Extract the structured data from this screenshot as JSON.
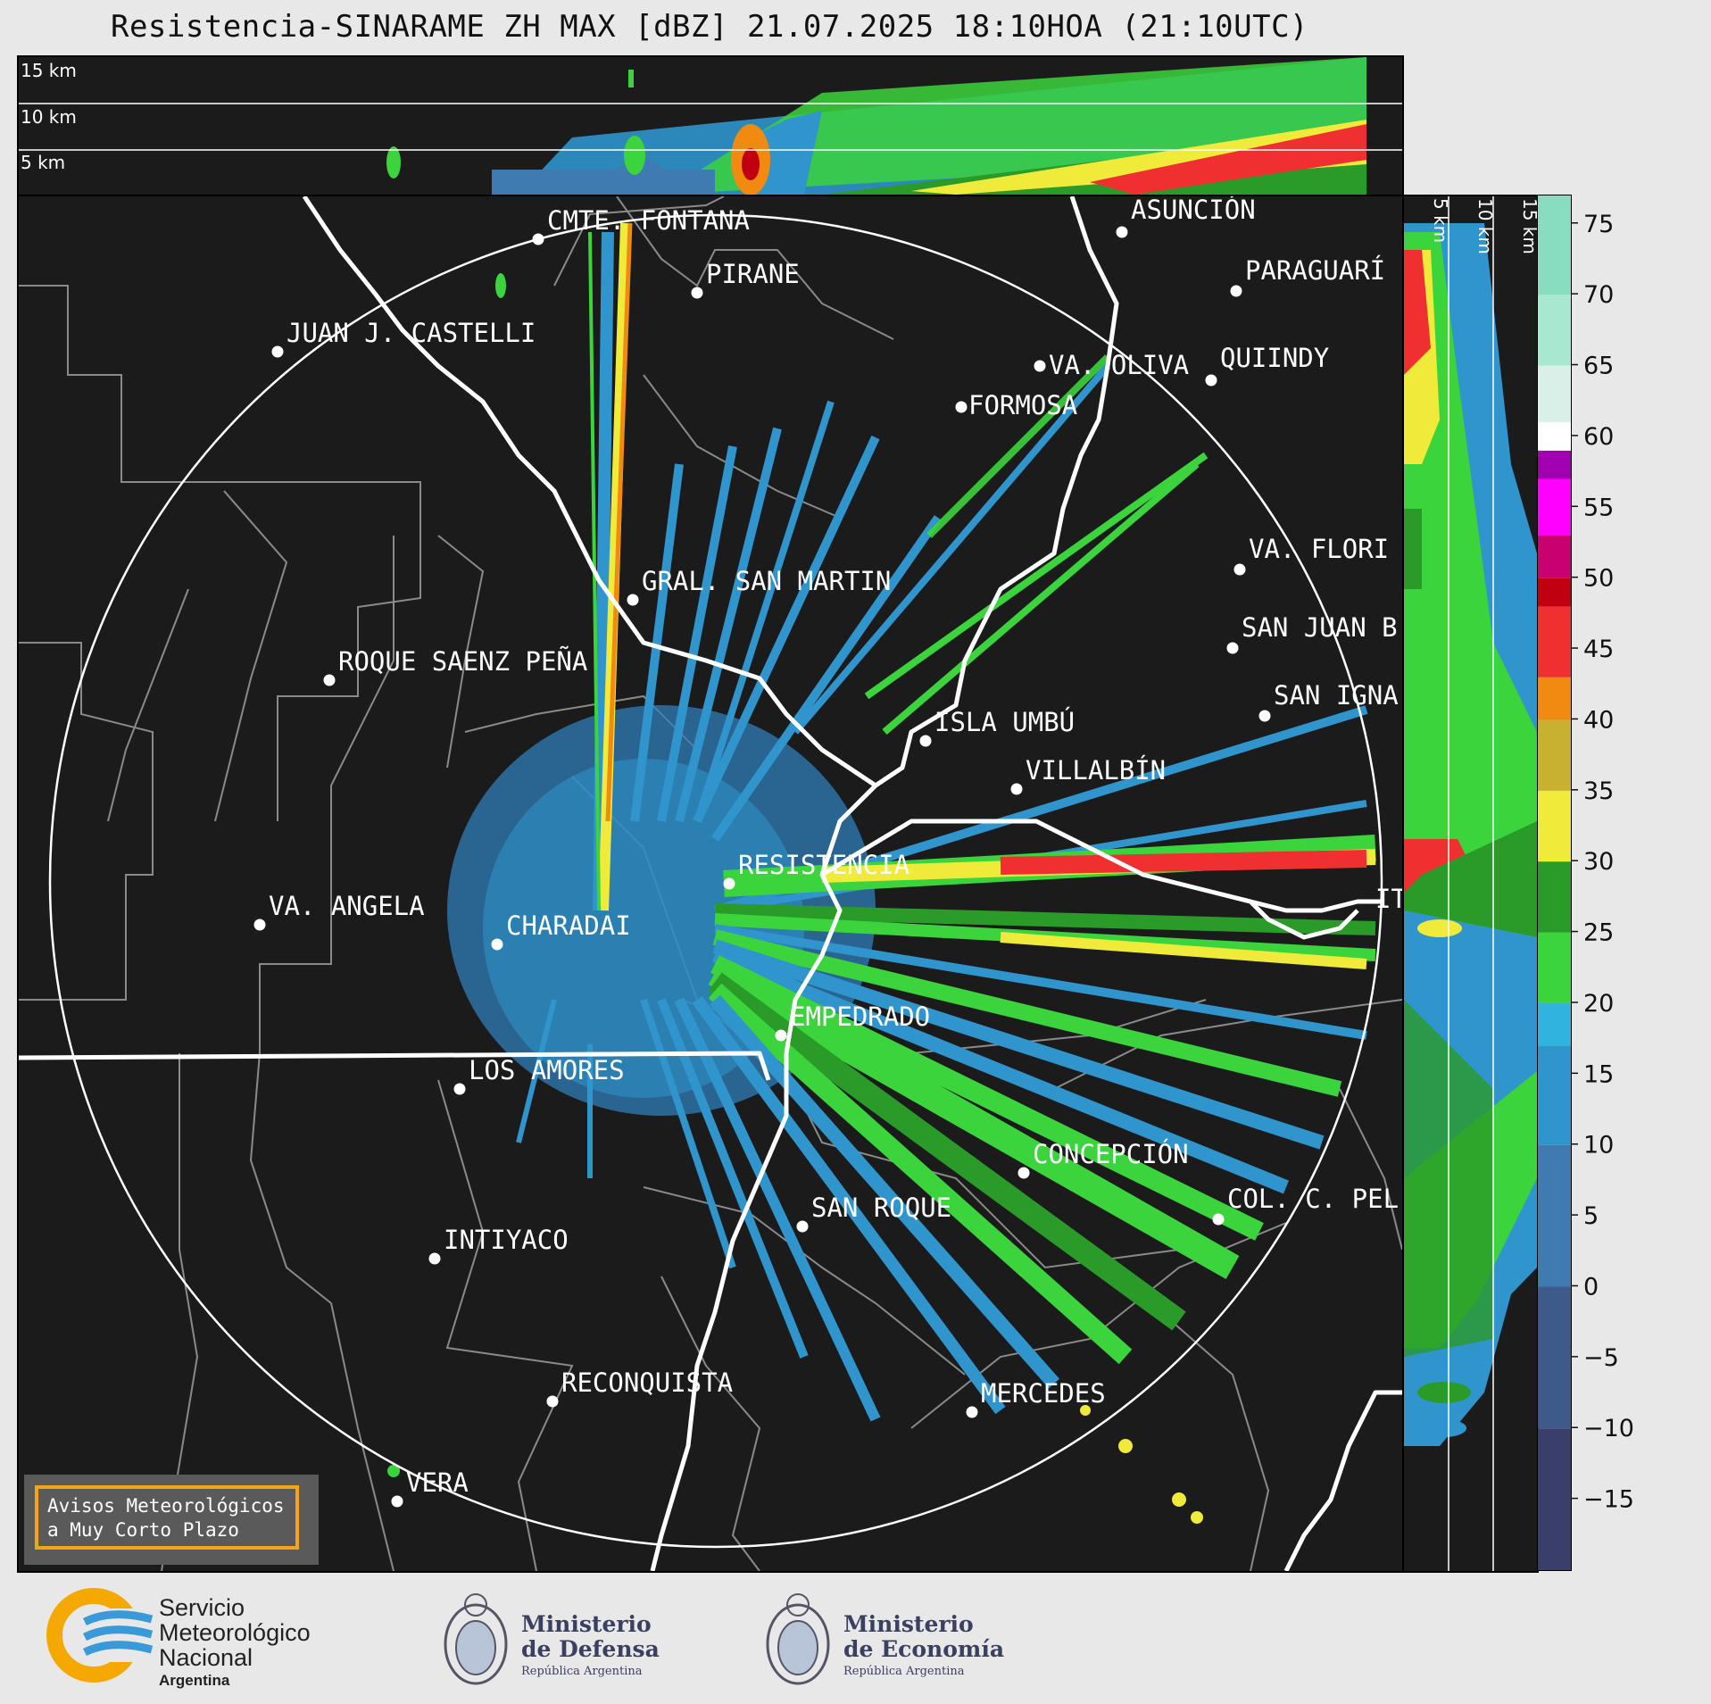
{
  "title": "Resistencia-SINARAME ZH MAX [dBZ] 21.07.2025 18:10HOA (21:10UTC)",
  "top_panel": {
    "height_labels": [
      "15 km",
      "10 km",
      "5 km"
    ]
  },
  "side_panel": {
    "height_labels": [
      "5 km",
      "10 km",
      "15 km"
    ]
  },
  "places": [
    {
      "name": "CMTE. FONTANA"
    },
    {
      "name": "PIRANE"
    },
    {
      "name": "JUAN J. CASTELLI"
    },
    {
      "name": "ASUNCIÓN"
    },
    {
      "name": "PARAGUARÍ"
    },
    {
      "name": "QUIINDY"
    },
    {
      "name": "VA. OLIVA"
    },
    {
      "name": "FORMOSA"
    },
    {
      "name": "VA. FLORI"
    },
    {
      "name": "GRAL. SAN MARTIN"
    },
    {
      "name": "ROQUE SAENZ PEÑA"
    },
    {
      "name": "SAN JUAN B"
    },
    {
      "name": "SAN IGNA"
    },
    {
      "name": "ISLA UMBÚ"
    },
    {
      "name": "VILLALBÍN"
    },
    {
      "name": "RESISTENCIA"
    },
    {
      "name": "VA. ANGELA"
    },
    {
      "name": "CHARADAI"
    },
    {
      "name": "IT"
    },
    {
      "name": "EMPEDRADO"
    },
    {
      "name": "LOS AMORES"
    },
    {
      "name": "CONCEPCIÓN"
    },
    {
      "name": "COL. C. PEL"
    },
    {
      "name": "SAN ROQUE"
    },
    {
      "name": "INTIYACO"
    },
    {
      "name": "RECONQUISTA"
    },
    {
      "name": "MERCEDES"
    },
    {
      "name": "VERA"
    }
  ],
  "colorbar": {
    "unit": "dBZ",
    "ticks": [
      "75",
      "70",
      "65",
      "60",
      "55",
      "50",
      "45",
      "40",
      "35",
      "30",
      "25",
      "20",
      "15",
      "10",
      "5",
      "0",
      "−5",
      "−10",
      "−15"
    ],
    "range": [
      -20,
      77
    ],
    "stops": [
      {
        "from": -20,
        "color": "#3a3e6b"
      },
      {
        "from": -10,
        "color": "#3e5a8a"
      },
      {
        "from": 0,
        "color": "#3f7ab0"
      },
      {
        "from": 10,
        "color": "#2f95cc"
      },
      {
        "from": 17,
        "color": "#31b3e0"
      },
      {
        "from": 20,
        "color": "#3cd43c"
      },
      {
        "from": 25,
        "color": "#2a9a28"
      },
      {
        "from": 30,
        "color": "#f0ea3a"
      },
      {
        "from": 35,
        "color": "#c8b030"
      },
      {
        "from": 40,
        "color": "#f08a10"
      },
      {
        "from": 43,
        "color": "#f03030"
      },
      {
        "from": 48,
        "color": "#c00010"
      },
      {
        "from": 50,
        "color": "#c80070"
      },
      {
        "from": 53,
        "color": "#ff00ff"
      },
      {
        "from": 57,
        "color": "#a000b0"
      },
      {
        "from": 59,
        "color": "#ffffff"
      },
      {
        "from": 61,
        "color": "#d8f0e8"
      },
      {
        "from": 65,
        "color": "#a8e8d0"
      },
      {
        "from": 70,
        "color": "#88dcc0"
      }
    ]
  },
  "avisos": {
    "line1": "Avisos Meteorológicos",
    "line2": "a Muy Corto Plazo"
  },
  "footer": {
    "smn_line1": "Servicio",
    "smn_line2": "Meteorológico",
    "smn_line3": "Nacional",
    "smn_line4": "Argentina",
    "defensa_line1": "Ministerio",
    "defensa_line2": "de Defensa",
    "defensa_line3": "República Argentina",
    "economia_line1": "Ministerio",
    "economia_line2": "de Economía",
    "economia_line3": "República Argentina"
  }
}
